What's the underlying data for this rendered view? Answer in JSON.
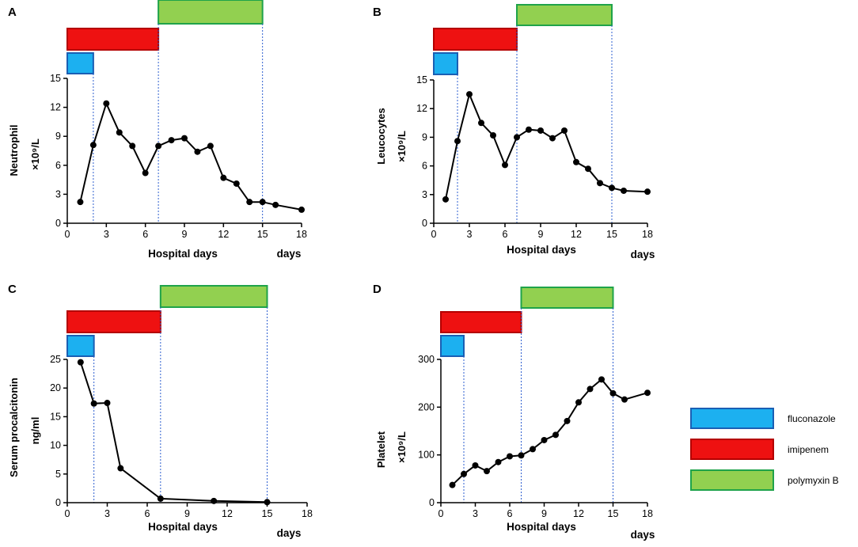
{
  "figure": {
    "legend": [
      {
        "key": "fluconazole",
        "label": "fluconazole",
        "fill": "#1CB0F0",
        "stroke": "#1A5FB4"
      },
      {
        "key": "imipenem",
        "label": "imipenem",
        "fill": "#EE1111",
        "stroke": "#B40000"
      },
      {
        "key": "polymyxin",
        "label": "polymyxin B",
        "fill": "#92D050",
        "stroke": "#1FA34A"
      }
    ],
    "colors": {
      "line": "#000000",
      "marker": "#000000",
      "guide": "#2E5FD0"
    }
  },
  "chart_data": [
    {
      "panel": "A",
      "type": "line",
      "ylabel": "Neutrophil",
      "yunit": "×10⁹/L",
      "xlabel": "Hospital days",
      "xunit": "days",
      "xlim": [
        0,
        18
      ],
      "ylim": [
        0,
        15
      ],
      "xticks": [
        0,
        3,
        6,
        9,
        12,
        15,
        18
      ],
      "yticks": [
        0,
        3,
        6,
        9,
        12,
        15
      ],
      "x": [
        1,
        2,
        3,
        4,
        5,
        6,
        7,
        8,
        9,
        10,
        11,
        12,
        13,
        14,
        15,
        16,
        18
      ],
      "y": [
        2.2,
        8.1,
        12.4,
        9.4,
        8.0,
        5.2,
        8.0,
        8.6,
        8.8,
        7.4,
        8.0,
        4.7,
        4.1,
        2.2,
        2.2,
        1.9,
        1.4
      ],
      "treatments": [
        {
          "drug": "fluconazole",
          "start": 0,
          "end": 2
        },
        {
          "drug": "imipenem",
          "start": 0,
          "end": 7
        },
        {
          "drug": "polymyxin",
          "start": 7,
          "end": 15
        }
      ],
      "guides": [
        2,
        7,
        15
      ]
    },
    {
      "panel": "B",
      "type": "line",
      "ylabel": "Leucocytes",
      "yunit": "×10⁹/L",
      "xlabel": "Hospital days",
      "xunit": "days",
      "xlim": [
        0,
        18
      ],
      "ylim": [
        0,
        15
      ],
      "xticks": [
        0,
        3,
        6,
        9,
        12,
        15,
        18
      ],
      "yticks": [
        0,
        3,
        6,
        9,
        12,
        15
      ],
      "x": [
        1,
        2,
        3,
        4,
        5,
        6,
        7,
        8,
        9,
        10,
        11,
        12,
        13,
        14,
        15,
        16,
        18
      ],
      "y": [
        2.5,
        8.6,
        13.5,
        10.5,
        9.2,
        6.1,
        9.0,
        9.8,
        9.7,
        8.9,
        9.7,
        6.4,
        5.7,
        4.2,
        3.7,
        3.4,
        3.3
      ],
      "treatments": [
        {
          "drug": "fluconazole",
          "start": 0,
          "end": 2
        },
        {
          "drug": "imipenem",
          "start": 0,
          "end": 7
        },
        {
          "drug": "polymyxin",
          "start": 7,
          "end": 15
        }
      ],
      "guides": [
        2,
        7,
        15
      ]
    },
    {
      "panel": "C",
      "type": "line",
      "ylabel": "Serum procalcitonin",
      "yunit": "ng/ml",
      "xlabel": "Hospital days",
      "xunit": "days",
      "xlim": [
        0,
        18
      ],
      "ylim": [
        0,
        25
      ],
      "xticks": [
        0,
        3,
        6,
        9,
        12,
        15,
        18
      ],
      "yticks": [
        0,
        5,
        10,
        15,
        20,
        25
      ],
      "x": [
        1,
        2,
        3,
        4,
        7,
        11,
        15
      ],
      "y": [
        24.5,
        17.3,
        17.4,
        6.0,
        0.7,
        0.3,
        0.1
      ],
      "treatments": [
        {
          "drug": "fluconazole",
          "start": 0,
          "end": 2
        },
        {
          "drug": "imipenem",
          "start": 0,
          "end": 7
        },
        {
          "drug": "polymyxin",
          "start": 7,
          "end": 15
        }
      ],
      "guides": [
        2,
        7,
        15
      ]
    },
    {
      "panel": "D",
      "type": "line",
      "ylabel": "Platelet",
      "yunit": "×10⁹/L",
      "xlabel": "Hospital days",
      "xunit": "days",
      "xlim": [
        0,
        18
      ],
      "ylim": [
        0,
        300
      ],
      "xticks": [
        0,
        3,
        6,
        9,
        12,
        15,
        18
      ],
      "yticks": [
        0,
        100,
        200,
        300
      ],
      "x": [
        1,
        2,
        3,
        4,
        5,
        6,
        7,
        8,
        9,
        10,
        11,
        12,
        13,
        14,
        15,
        16,
        18
      ],
      "y": [
        37,
        60,
        78,
        66,
        85,
        97,
        99,
        112,
        131,
        142,
        171,
        210,
        238,
        258,
        229,
        216,
        230
      ],
      "treatments": [
        {
          "drug": "fluconazole",
          "start": 0,
          "end": 2
        },
        {
          "drug": "imipenem",
          "start": 0,
          "end": 7
        },
        {
          "drug": "polymyxin",
          "start": 7,
          "end": 15
        }
      ],
      "guides": [
        2,
        7,
        15
      ]
    }
  ]
}
